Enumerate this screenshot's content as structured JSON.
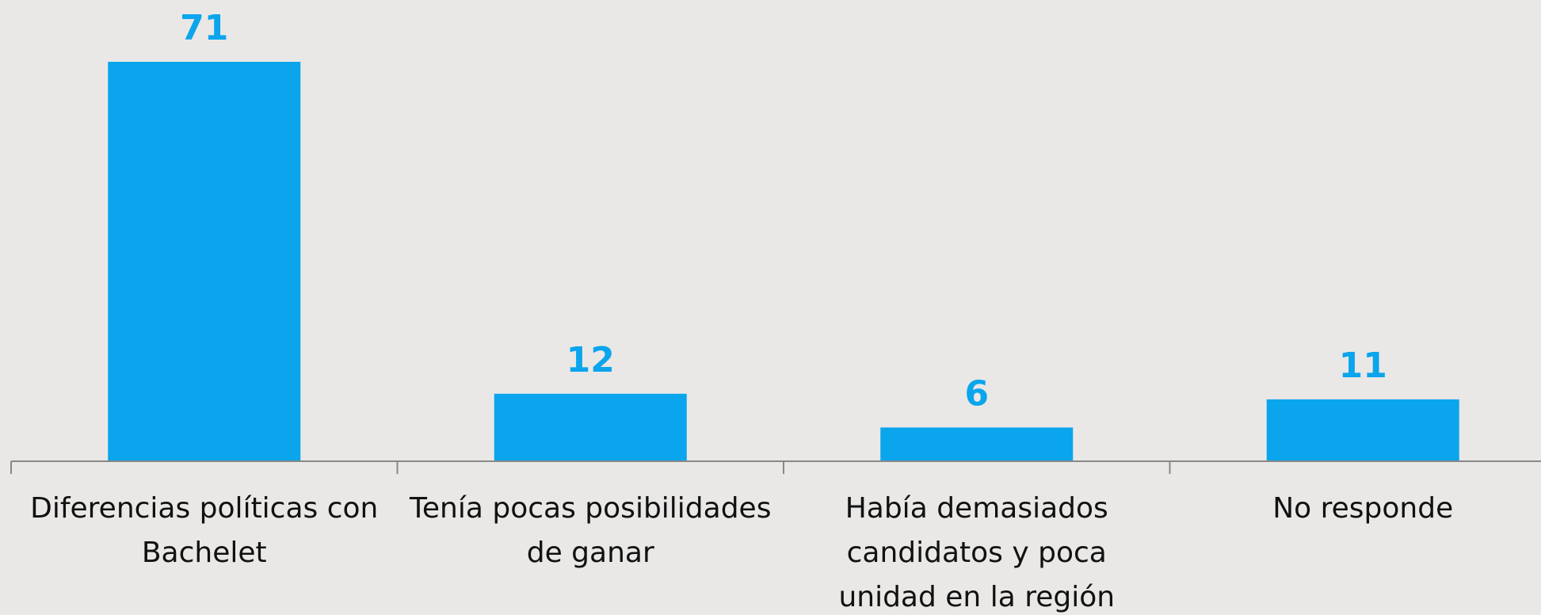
{
  "chart_data": {
    "type": "bar",
    "categories": [
      "Diferencias políticas con Bachelet",
      "Tenía pocas posibilidades de ganar",
      "Había demasiados candidatos y poca unidad en la región",
      "No responde"
    ],
    "values": [
      71,
      12,
      6,
      11
    ],
    "color": "#0aa5ec"
  }
}
